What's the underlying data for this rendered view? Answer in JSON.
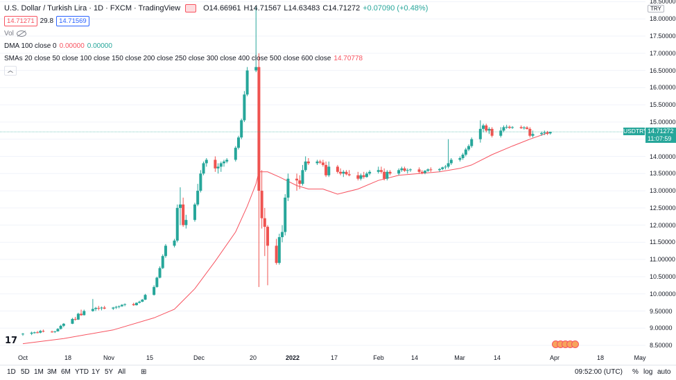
{
  "header": {
    "symbol_title": "U.S. Dollar / Turkish Lira · 1D · FXCM · TradingView",
    "open": "O14.66961",
    "high": "H14.71567",
    "low": "L14.63483",
    "close": "C14.71272",
    "change": "+0.07090 (+0.48%)",
    "bid": "14.71271",
    "spread": "29.8",
    "ask": "14.71569",
    "volume_label": "Vol",
    "dma_label": "DMA 100 close 0",
    "dma_val1": "0.00000",
    "dma_val2": "0.00000",
    "sma_label": "SMAs 20 close 50 close 100 close 150 close 200 close 250 close 300 close 400 close 500 close 600 close",
    "sma_value": "14.70778",
    "collapse_icon": "chevron-up-icon"
  },
  "colors": {
    "up": "#26a69a",
    "down": "#ef5350",
    "sma": "#f7525f",
    "grid": "#f0f3fa",
    "price_line": "#26a69a"
  },
  "price_axis": {
    "currency": "TRY",
    "ticks": [
      "18.50000",
      "18.00000",
      "17.50000",
      "17.00000",
      "16.50000",
      "16.00000",
      "15.50000",
      "15.00000",
      "14.50000",
      "14.00000",
      "13.50000",
      "13.00000",
      "12.50000",
      "12.00000",
      "11.50000",
      "11.00000",
      "10.50000",
      "10.00000",
      "9.50000",
      "9.00000",
      "8.50000"
    ],
    "last_price": "14.71272",
    "countdown": "11:07:59",
    "symbol": "USDTRY"
  },
  "time_axis": {
    "ticks": [
      "Oct",
      "18",
      "Nov",
      "15",
      "Dec",
      "20",
      "2022",
      "17",
      "Feb",
      "14",
      "Mar",
      "14",
      "Apr",
      "18",
      "May"
    ]
  },
  "bottom_bar": {
    "timeframes": [
      "1D",
      "5D",
      "1M",
      "3M",
      "6M",
      "YTD",
      "1Y",
      "5Y",
      "All"
    ],
    "time": "09:52:00 (UTC)",
    "percent": "%",
    "log": "log",
    "auto": "auto"
  },
  "chart_data": {
    "type": "candlestick",
    "title": "U.S. Dollar / Turkish Lira · 1D · FXCM · TradingView",
    "ylim": [
      8.3,
      18.55
    ],
    "x_dates": [
      "2021-10-01",
      "2022-05-01"
    ],
    "candles": [
      [
        "2021-10-01",
        8.83,
        8.86,
        8.78,
        8.84
      ],
      [
        "2021-10-04",
        8.84,
        8.9,
        8.8,
        8.87
      ],
      [
        "2021-10-05",
        8.87,
        8.9,
        8.84,
        8.88
      ],
      [
        "2021-10-06",
        8.88,
        8.92,
        8.85,
        8.87
      ],
      [
        "2021-10-07",
        8.87,
        8.95,
        8.85,
        8.92
      ],
      [
        "2021-10-08",
        8.92,
        8.96,
        8.88,
        8.9
      ],
      [
        "2021-10-11",
        8.9,
        8.93,
        8.87,
        8.89
      ],
      [
        "2021-10-12",
        8.89,
        8.92,
        8.86,
        8.91
      ],
      [
        "2021-10-13",
        8.91,
        9.0,
        8.9,
        8.98
      ],
      [
        "2021-10-14",
        8.98,
        9.1,
        8.96,
        9.07
      ],
      [
        "2021-10-15",
        9.07,
        9.15,
        9.03,
        9.13
      ],
      [
        "2021-10-18",
        9.13,
        9.3,
        9.12,
        9.27
      ],
      [
        "2021-10-19",
        9.27,
        9.33,
        9.22,
        9.25
      ],
      [
        "2021-10-20",
        9.25,
        9.45,
        9.24,
        9.42
      ],
      [
        "2021-10-21",
        9.42,
        9.54,
        9.36,
        9.38
      ],
      [
        "2021-10-22",
        9.38,
        9.54,
        9.37,
        9.5
      ],
      [
        "2021-10-25",
        9.5,
        9.85,
        9.48,
        9.56
      ],
      [
        "2021-10-26",
        9.56,
        9.62,
        9.5,
        9.59
      ],
      [
        "2021-10-27",
        9.59,
        9.65,
        9.52,
        9.58
      ],
      [
        "2021-10-28",
        9.58,
        9.63,
        9.52,
        9.6
      ],
      [
        "2021-10-29",
        9.6,
        9.65,
        9.55,
        9.57
      ],
      [
        "2021-11-01",
        9.57,
        9.62,
        9.53,
        9.6
      ],
      [
        "2021-11-02",
        9.6,
        9.65,
        9.56,
        9.62
      ],
      [
        "2021-11-03",
        9.62,
        9.66,
        9.58,
        9.64
      ],
      [
        "2021-11-04",
        9.64,
        9.7,
        9.62,
        9.68
      ],
      [
        "2021-11-05",
        9.68,
        9.72,
        9.64,
        9.7
      ],
      [
        "2021-11-08",
        9.7,
        9.74,
        9.65,
        9.67
      ],
      [
        "2021-11-09",
        9.67,
        9.75,
        9.66,
        9.74
      ],
      [
        "2021-11-10",
        9.74,
        9.8,
        9.72,
        9.77
      ],
      [
        "2021-11-11",
        9.77,
        9.85,
        9.76,
        9.83
      ],
      [
        "2021-11-12",
        9.83,
        10.0,
        9.82,
        9.97
      ],
      [
        "2021-11-15",
        9.97,
        10.25,
        9.95,
        10.2
      ],
      [
        "2021-11-16",
        10.2,
        10.5,
        10.18,
        10.47
      ],
      [
        "2021-11-17",
        10.47,
        10.8,
        10.45,
        10.75
      ],
      [
        "2021-11-18",
        10.75,
        11.15,
        10.72,
        11.1
      ],
      [
        "2021-11-19",
        11.1,
        11.45,
        11.05,
        11.4
      ],
      [
        "2021-11-22",
        11.4,
        11.6,
        11.35,
        11.55
      ],
      [
        "2021-11-23",
        11.55,
        12.6,
        11.5,
        12.5
      ],
      [
        "2021-11-24",
        12.5,
        13.1,
        12.0,
        12.6
      ],
      [
        "2021-11-25",
        12.6,
        12.8,
        11.95,
        12.0
      ],
      [
        "2021-11-26",
        12.0,
        12.3,
        11.9,
        12.15
      ],
      [
        "2021-11-29",
        12.15,
        12.65,
        12.1,
        12.6
      ],
      [
        "2021-11-30",
        12.6,
        13.2,
        12.55,
        13.0
      ],
      [
        "2021-12-01",
        13.0,
        13.6,
        12.95,
        13.5
      ],
      [
        "2021-12-02",
        13.5,
        13.85,
        13.45,
        13.8
      ],
      [
        "2021-12-03",
        13.8,
        13.95,
        13.7,
        13.9
      ],
      [
        "2021-12-06",
        13.9,
        14.0,
        13.55,
        13.65
      ],
      [
        "2021-12-07",
        13.65,
        13.8,
        13.5,
        13.7
      ],
      [
        "2021-12-08",
        13.7,
        13.85,
        13.55,
        13.8
      ],
      [
        "2021-12-09",
        13.8,
        13.9,
        13.7,
        13.85
      ],
      [
        "2021-12-10",
        13.85,
        13.95,
        13.8,
        13.9
      ],
      [
        "2021-12-13",
        13.9,
        14.3,
        13.85,
        14.25
      ],
      [
        "2021-12-14",
        14.25,
        14.6,
        14.2,
        14.55
      ],
      [
        "2021-12-15",
        14.55,
        15.1,
        14.5,
        15.05
      ],
      [
        "2021-12-16",
        15.05,
        15.9,
        15.0,
        15.8
      ],
      [
        "2021-12-17",
        15.8,
        16.6,
        15.75,
        16.5
      ],
      [
        "2021-12-20",
        16.5,
        18.35,
        16.45,
        16.6
      ],
      [
        "2021-12-21",
        16.6,
        17.0,
        10.2,
        13.0
      ],
      [
        "2021-12-22",
        13.0,
        13.6,
        11.9,
        12.2
      ],
      [
        "2021-12-23",
        12.2,
        12.5,
        11.1,
        11.95
      ],
      [
        "2021-12-24",
        11.95,
        12.0,
        10.25,
        11.4
      ],
      [
        "2021-12-27",
        11.4,
        11.6,
        10.85,
        10.9
      ],
      [
        "2021-12-28",
        10.9,
        11.75,
        10.85,
        11.65
      ],
      [
        "2021-12-29",
        11.65,
        12.0,
        11.5,
        11.8
      ],
      [
        "2021-12-30",
        11.8,
        12.9,
        11.7,
        12.8
      ],
      [
        "2021-12-31",
        12.8,
        13.5,
        12.7,
        13.35
      ],
      [
        "2022-01-03",
        13.35,
        13.5,
        13.0,
        13.3
      ],
      [
        "2022-01-04",
        13.3,
        13.45,
        13.05,
        13.2
      ],
      [
        "2022-01-05",
        13.2,
        13.75,
        13.15,
        13.6
      ],
      [
        "2022-01-06",
        13.6,
        14.0,
        13.55,
        13.85
      ],
      [
        "2022-01-07",
        13.85,
        13.95,
        13.75,
        13.8
      ],
      [
        "2022-01-10",
        13.8,
        13.9,
        13.75,
        13.85
      ],
      [
        "2022-01-11",
        13.85,
        13.9,
        13.78,
        13.82
      ],
      [
        "2022-01-12",
        13.82,
        13.9,
        13.7,
        13.75
      ],
      [
        "2022-01-13",
        13.75,
        13.85,
        13.4,
        13.45
      ],
      [
        "2022-01-14",
        13.45,
        13.85,
        13.4,
        13.7
      ],
      [
        "2022-01-17",
        13.7,
        13.75,
        13.5,
        13.55
      ],
      [
        "2022-01-18",
        13.55,
        13.65,
        13.45,
        13.5
      ],
      [
        "2022-01-19",
        13.5,
        13.6,
        13.4,
        13.55
      ],
      [
        "2022-01-20",
        13.55,
        13.6,
        13.45,
        13.48
      ],
      [
        "2022-01-21",
        13.48,
        13.6,
        13.42,
        13.45
      ],
      [
        "2022-01-24",
        13.45,
        13.55,
        13.3,
        13.35
      ],
      [
        "2022-01-25",
        13.35,
        13.5,
        13.3,
        13.45
      ],
      [
        "2022-01-26",
        13.45,
        13.55,
        13.35,
        13.4
      ],
      [
        "2022-01-27",
        13.4,
        13.55,
        13.38,
        13.5
      ],
      [
        "2022-01-28",
        13.5,
        13.6,
        13.45,
        13.55
      ],
      [
        "2022-01-31",
        13.55,
        13.7,
        13.5,
        13.6
      ],
      [
        "2022-02-01",
        13.6,
        13.7,
        13.5,
        13.55
      ],
      [
        "2022-02-02",
        13.55,
        13.65,
        13.3,
        13.35
      ],
      [
        "2022-02-03",
        13.35,
        13.6,
        13.3,
        13.55
      ],
      [
        "2022-02-04",
        13.55,
        13.6,
        13.45,
        13.5
      ],
      [
        "2022-02-07",
        13.5,
        13.65,
        13.45,
        13.6
      ],
      [
        "2022-02-08",
        13.6,
        13.7,
        13.55,
        13.65
      ],
      [
        "2022-02-09",
        13.65,
        13.7,
        13.55,
        13.58
      ],
      [
        "2022-02-10",
        13.58,
        13.65,
        13.5,
        13.6
      ],
      [
        "2022-02-11",
        13.6,
        13.65,
        13.55,
        13.62
      ],
      [
        "2022-02-14",
        13.62,
        13.68,
        13.5,
        13.55
      ],
      [
        "2022-02-15",
        13.55,
        13.6,
        13.48,
        13.52
      ],
      [
        "2022-02-16",
        13.52,
        13.6,
        13.48,
        13.58
      ],
      [
        "2022-02-17",
        13.58,
        13.65,
        13.55,
        13.62
      ],
      [
        "2022-02-18",
        13.62,
        13.68,
        13.55,
        13.6
      ],
      [
        "2022-02-21",
        13.6,
        13.66,
        13.55,
        13.63
      ],
      [
        "2022-02-22",
        13.63,
        13.7,
        13.6,
        13.68
      ],
      [
        "2022-02-23",
        13.68,
        13.75,
        13.62,
        13.7
      ],
      [
        "2022-02-24",
        13.7,
        14.5,
        13.65,
        13.8
      ],
      [
        "2022-02-25",
        13.8,
        13.95,
        13.75,
        13.9
      ],
      [
        "2022-02-28",
        13.9,
        14.0,
        13.85,
        13.95
      ],
      [
        "2022-03-01",
        13.95,
        14.1,
        13.9,
        14.05
      ],
      [
        "2022-03-02",
        14.05,
        14.25,
        14.0,
        14.2
      ],
      [
        "2022-03-03",
        14.2,
        14.35,
        14.15,
        14.3
      ],
      [
        "2022-03-04",
        14.3,
        14.55,
        14.25,
        14.5
      ],
      [
        "2022-03-07",
        14.5,
        15.05,
        14.4,
        14.8
      ],
      [
        "2022-03-08",
        14.8,
        14.95,
        14.7,
        14.9
      ],
      [
        "2022-03-09",
        14.9,
        14.95,
        14.7,
        14.75
      ],
      [
        "2022-03-10",
        14.75,
        14.85,
        14.65,
        14.8
      ],
      [
        "2022-03-11",
        14.8,
        14.85,
        14.55,
        14.6
      ],
      [
        "2022-03-14",
        14.6,
        14.85,
        14.55,
        14.75
      ],
      [
        "2022-03-15",
        14.75,
        14.9,
        14.7,
        14.85
      ],
      [
        "2022-03-16",
        14.85,
        14.92,
        14.8,
        14.86
      ],
      [
        "2022-03-17",
        14.86,
        14.9,
        14.8,
        14.83
      ],
      [
        "2022-03-18",
        14.83,
        14.88,
        14.8,
        14.85
      ],
      [
        "2022-03-21",
        14.85,
        14.9,
        14.8,
        14.82
      ],
      [
        "2022-03-22",
        14.82,
        14.88,
        14.78,
        14.84
      ],
      [
        "2022-03-23",
        14.84,
        14.88,
        14.78,
        14.8
      ],
      [
        "2022-03-24",
        14.8,
        14.85,
        14.55,
        14.6
      ],
      [
        "2022-03-25",
        14.6,
        14.75,
        14.55,
        14.65
      ],
      [
        "2022-03-28",
        14.65,
        14.72,
        14.6,
        14.68
      ],
      [
        "2022-03-29",
        14.68,
        14.75,
        14.62,
        14.7
      ],
      [
        "2022-03-30",
        14.7,
        14.74,
        14.62,
        14.66
      ],
      [
        "2022-03-31",
        14.66961,
        14.71567,
        14.63483,
        14.71272
      ]
    ],
    "sma_line": [
      [
        "2021-10-01",
        8.55
      ],
      [
        "2021-10-15",
        8.7
      ],
      [
        "2021-11-01",
        8.95
      ],
      [
        "2021-11-15",
        9.3
      ],
      [
        "2021-11-22",
        9.55
      ],
      [
        "2021-11-29",
        10.15
      ],
      [
        "2021-12-06",
        10.95
      ],
      [
        "2021-12-13",
        11.8
      ],
      [
        "2021-12-17",
        12.55
      ],
      [
        "2021-12-20",
        13.2
      ],
      [
        "2021-12-21",
        13.55
      ],
      [
        "2021-12-24",
        13.55
      ],
      [
        "2021-12-28",
        13.4
      ],
      [
        "2022-01-03",
        13.15
      ],
      [
        "2022-01-07",
        13.05
      ],
      [
        "2022-01-12",
        13.05
      ],
      [
        "2022-01-17",
        12.9
      ],
      [
        "2022-01-24",
        13.05
      ],
      [
        "2022-01-31",
        13.3
      ],
      [
        "2022-02-07",
        13.45
      ],
      [
        "2022-02-14",
        13.5
      ],
      [
        "2022-02-21",
        13.55
      ],
      [
        "2022-02-28",
        13.65
      ],
      [
        "2022-03-04",
        13.75
      ],
      [
        "2022-03-11",
        14.05
      ],
      [
        "2022-03-18",
        14.3
      ],
      [
        "2022-03-24",
        14.5
      ],
      [
        "2022-03-31",
        14.70778
      ]
    ]
  }
}
